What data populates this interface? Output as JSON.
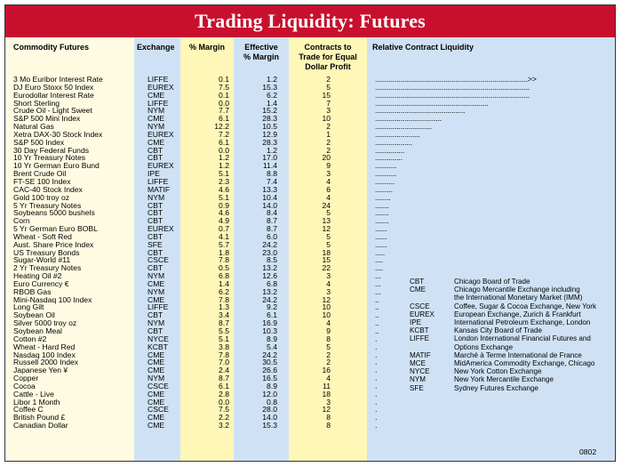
{
  "title": "Trading Liquidity: Futures",
  "headers": {
    "commodity": "Commodity Futures",
    "exchange": "Exchange",
    "margin": "% Margin",
    "effective_line1": "Effective",
    "effective_line2": "% Margin",
    "contracts_line1": "Contracts to",
    "contracts_line2": "Trade for Equal",
    "contracts_line3": "Dollar Profit",
    "liquidity": "Relative Contract Liquidity"
  },
  "rows": [
    {
      "name": "3 Mo Euribor Interest Rate",
      "exchange": "LIFFE",
      "margin": "0.1",
      "effective": "1.2",
      "contracts": "2",
      "bar": "..............................................................................>>"
    },
    {
      "name": "DJ Euro Stoxx 50 Index",
      "exchange": "EUREX",
      "margin": "7.5",
      "effective": "15.3",
      "contracts": "5",
      "bar": "..............................................................................."
    },
    {
      "name": "Eurodollar Interest Rate",
      "exchange": "CME",
      "margin": "0.1",
      "effective": "6.2",
      "contracts": "15",
      "bar": "..............................................................................."
    },
    {
      "name": "Short Sterling",
      "exchange": "LIFFE",
      "margin": "0.0",
      "effective": "1.4",
      "contracts": "7",
      "bar": ".........................................................."
    },
    {
      "name": "Crude Oil - Light Sweet",
      "exchange": "NYM",
      "margin": "7.7",
      "effective": "15.2",
      "contracts": "3",
      "bar": ".............................................."
    },
    {
      "name": "S&P 500 Mini Index",
      "exchange": "CME",
      "margin": "6.1",
      "effective": "28.3",
      "contracts": "10",
      "bar": ".................................."
    },
    {
      "name": "Natural Gas",
      "exchange": "NYM",
      "margin": "12.2",
      "effective": "10.5",
      "contracts": "2",
      "bar": "............................."
    },
    {
      "name": "Xetra DAX-30 Stock Index",
      "exchange": "EUREX",
      "margin": "7.2",
      "effective": "12.9",
      "contracts": "1",
      "bar": "......................."
    },
    {
      "name": "S&P 500 Index",
      "exchange": "CME",
      "margin": "6.1",
      "effective": "28.3",
      "contracts": "2",
      "bar": "..................."
    },
    {
      "name": "30 Day Federal Funds",
      "exchange": "CBT",
      "margin": "0.0",
      "effective": "1.2",
      "contracts": "2",
      "bar": "..............."
    },
    {
      "name": "10 Yr Treasury Notes",
      "exchange": "CBT",
      "margin": "1.2",
      "effective": "17.0",
      "contracts": "20",
      "bar": ".............."
    },
    {
      "name": "10 Yr German Euro Bund",
      "exchange": "EUREX",
      "margin": "1.2",
      "effective": "11.4",
      "contracts": "9",
      "bar": "..........."
    },
    {
      "name": "Brent Crude Oil",
      "exchange": "IPE",
      "margin": "5.1",
      "effective": "8.8",
      "contracts": "3",
      "bar": "..........."
    },
    {
      "name": "FT-SE 100 Index",
      "exchange": "LIFFE",
      "margin": "2.3",
      "effective": "7.4",
      "contracts": "4",
      "bar": ".........."
    },
    {
      "name": "CAC-40 Stock Index",
      "exchange": "MATIF",
      "margin": "4.6",
      "effective": "13.3",
      "contracts": "6",
      "bar": "........."
    },
    {
      "name": "Gold 100 troy oz",
      "exchange": "NYM",
      "margin": "5.1",
      "effective": "10.4",
      "contracts": "4",
      "bar": "........"
    },
    {
      "name": "5 Yr Treasury Notes",
      "exchange": "CBT",
      "margin": "0.9",
      "effective": "14.0",
      "contracts": "24",
      "bar": "......."
    },
    {
      "name": "Soybeans 5000 bushels",
      "exchange": "CBT",
      "margin": "4.6",
      "effective": "8.4",
      "contracts": "5",
      "bar": "......."
    },
    {
      "name": "Corn",
      "exchange": "CBT",
      "margin": "4.9",
      "effective": "8.7",
      "contracts": "13",
      "bar": "......."
    },
    {
      "name": "5 Yr German Euro BOBL",
      "exchange": "EUREX",
      "margin": "0.7",
      "effective": "8.7",
      "contracts": "12",
      "bar": "......"
    },
    {
      "name": "Wheat - Soft Red",
      "exchange": "CBT",
      "margin": "4.1",
      "effective": "6.0",
      "contracts": "5",
      "bar": "......"
    },
    {
      "name": "Aust. Share Price Index",
      "exchange": "SFE",
      "margin": "5.7",
      "effective": "24.2",
      "contracts": "5",
      "bar": "......"
    },
    {
      "name": "US Treasury Bonds",
      "exchange": "CBT",
      "margin": "1.8",
      "effective": "23.0",
      "contracts": "18",
      "bar": "....."
    },
    {
      "name": "Sugar-World #11",
      "exchange": "CSCE",
      "margin": "7.8",
      "effective": "8.5",
      "contracts": "15",
      "bar": "...."
    },
    {
      "name": "2 Yr Treasury Notes",
      "exchange": "CBT",
      "margin": "0.5",
      "effective": "13.2",
      "contracts": "22",
      "bar": "...."
    },
    {
      "name": "Heating Oil #2",
      "exchange": "NYM",
      "margin": "6.8",
      "effective": "12.6",
      "contracts": "3",
      "bar": "..."
    },
    {
      "name": "Euro Currency €",
      "exchange": "CME",
      "margin": "1.4",
      "effective": "6.8",
      "contracts": "4",
      "bar": "..."
    },
    {
      "name": "RBOB Gas",
      "exchange": "NYM",
      "margin": "6.2",
      "effective": "13.2",
      "contracts": "3",
      "bar": "..."
    },
    {
      "name": "Mini-Nasdaq 100 Index",
      "exchange": "CME",
      "margin": "7.8",
      "effective": "24.2",
      "contracts": "12",
      "bar": ".."
    },
    {
      "name": "Long Gilt",
      "exchange": "LIFFE",
      "margin": "1.3",
      "effective": "9.2",
      "contracts": "10",
      "bar": ".."
    },
    {
      "name": "Soybean Oil",
      "exchange": "CBT",
      "margin": "3.4",
      "effective": "6.1",
      "contracts": "10",
      "bar": ".."
    },
    {
      "name": "Silver 5000 troy oz",
      "exchange": "NYM",
      "margin": "8.7",
      "effective": "16.9",
      "contracts": "4",
      "bar": ".."
    },
    {
      "name": "Soybean Meal",
      "exchange": "CBT",
      "margin": "5.5",
      "effective": "10.3",
      "contracts": "9",
      "bar": ".."
    },
    {
      "name": "Cotton #2",
      "exchange": "NYCE",
      "margin": "5.1",
      "effective": "8.9",
      "contracts": "8",
      "bar": "."
    },
    {
      "name": "Wheat - Hard Red",
      "exchange": "KCBT",
      "margin": "3.8",
      "effective": "5.4",
      "contracts": "5",
      "bar": "."
    },
    {
      "name": "Nasdaq 100 Index",
      "exchange": "CME",
      "margin": "7.8",
      "effective": "24.2",
      "contracts": "2",
      "bar": "."
    },
    {
      "name": "Russell 2000 Index",
      "exchange": "CME",
      "margin": "7.0",
      "effective": "30.5",
      "contracts": "2",
      "bar": "."
    },
    {
      "name": "Japanese Yen ¥",
      "exchange": "CME",
      "margin": "2.4",
      "effective": "26.6",
      "contracts": "16",
      "bar": "."
    },
    {
      "name": "Copper",
      "exchange": "NYM",
      "margin": "8.7",
      "effective": "16.5",
      "contracts": "4",
      "bar": "."
    },
    {
      "name": "Cocoa",
      "exchange": "CSCE",
      "margin": "6.1",
      "effective": "8.9",
      "contracts": "11",
      "bar": "."
    },
    {
      "name": "Cattle - Live",
      "exchange": "CME",
      "margin": "2.8",
      "effective": "12.0",
      "contracts": "18",
      "bar": "."
    },
    {
      "name": "Libor 1 Month",
      "exchange": "CME",
      "margin": "0.0",
      "effective": "0.8",
      "contracts": "3",
      "bar": "."
    },
    {
      "name": "Coffee C",
      "exchange": "CSCE",
      "margin": "7.5",
      "effective": "28.0",
      "contracts": "12",
      "bar": "."
    },
    {
      "name": "British Pound £",
      "exchange": "CME",
      "margin": "2.2",
      "effective": "14.0",
      "contracts": "8",
      "bar": "."
    },
    {
      "name": "Canadian Dollar",
      "exchange": "CME",
      "margin": "3.2",
      "effective": "15.3",
      "contracts": "8",
      "bar": "."
    }
  ],
  "legend": [
    {
      "code": "CBT",
      "desc": "Chicago Board of Trade"
    },
    {
      "code": "CME",
      "desc": "Chicago Mercantile Exchange including"
    },
    {
      "code": "",
      "desc": "the International Monetary Market (IMM)"
    },
    {
      "code": "CSCE",
      "desc": "Coffee, Sugar & Cocoa Exchange, New York"
    },
    {
      "code": "EUREX",
      "desc": "European Exchange, Zurich & Frankfurt"
    },
    {
      "code": "IPE",
      "desc": "International Petroleum Exchange, London"
    },
    {
      "code": "KCBT",
      "desc": "Kansas City Board of Trade"
    },
    {
      "code": "LIFFE",
      "desc": "London International Financial Futures and"
    },
    {
      "code": "",
      "desc": "Options Exchange"
    },
    {
      "code": "MATIF",
      "desc": "Marché à Terme International de France"
    },
    {
      "code": "MCE",
      "desc": "MidAmerica Commodity Exchange, Chicago"
    },
    {
      "code": "NYCE",
      "desc": "New York Cotton Exchange"
    },
    {
      "code": "NYM",
      "desc": "New York Mercantile Exchange"
    },
    {
      "code": "SFE",
      "desc": "Sydney Futures Exchange"
    }
  ],
  "footer_code": "0802",
  "colors": {
    "title_bar": "#c8102e",
    "yellow_band": "#fff7b8",
    "blue_band": "#cfe2f5",
    "background": "#fffbe2"
  }
}
